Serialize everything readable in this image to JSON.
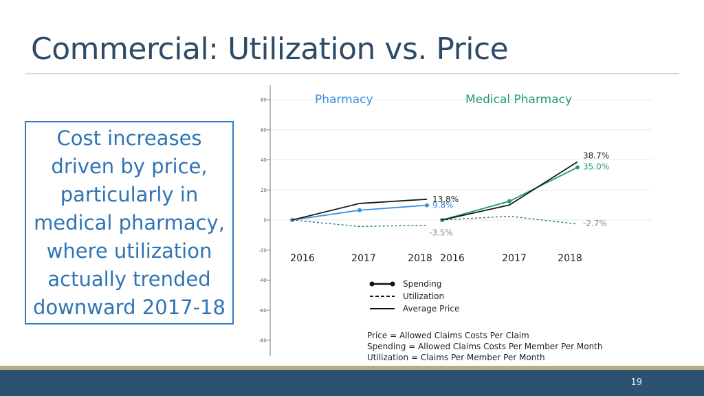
{
  "slide": {
    "title": "Commercial: Utilization vs. Price",
    "callout": "Cost increases driven by price, particularly in medical pharmacy, where utilization actually trended downward 2017-18",
    "page_number": "19"
  },
  "colors": {
    "pharmacy": "#3b8ee0",
    "medical_pharmacy": "#1e9a7a",
    "price": "#1a1a1a",
    "utilization": "#1f7a6b"
  },
  "chart_data": {
    "type": "line",
    "ylim": [
      -85,
      85
    ],
    "yticks": [
      80,
      60,
      40,
      20,
      0,
      -20,
      -40,
      -60,
      -80
    ],
    "panels": [
      {
        "title": "Pharmacy",
        "x": [
          "2016",
          "2017",
          "2018"
        ],
        "series": [
          {
            "name": "Spending",
            "values": [
              0,
              6.5,
              9.8
            ],
            "end_label": "9.8%"
          },
          {
            "name": "Utilization",
            "values": [
              0,
              -4.3,
              -3.5
            ],
            "end_label": "-3.5%"
          },
          {
            "name": "Average Price",
            "values": [
              0,
              11.0,
              13.8
            ],
            "end_label": "13.8%"
          }
        ]
      },
      {
        "title": "Medical Pharmacy",
        "x": [
          "2016",
          "2017",
          "2018"
        ],
        "series": [
          {
            "name": "Spending",
            "values": [
              0,
              12.5,
              35.0
            ],
            "end_label": "35.0%"
          },
          {
            "name": "Utilization",
            "values": [
              0,
              2.5,
              -2.7
            ],
            "end_label": "-2.7%"
          },
          {
            "name": "Average Price",
            "values": [
              0,
              10.0,
              38.7
            ],
            "end_label": "38.7%"
          }
        ]
      }
    ],
    "legend": [
      "Spending",
      "Utilization",
      "Average Price"
    ],
    "notes": [
      "Price = Allowed Claims Costs Per Claim",
      "Spending = Allowed Claims Costs Per Member Per Month",
      "Utilization = Claims Per Member Per Month"
    ]
  }
}
